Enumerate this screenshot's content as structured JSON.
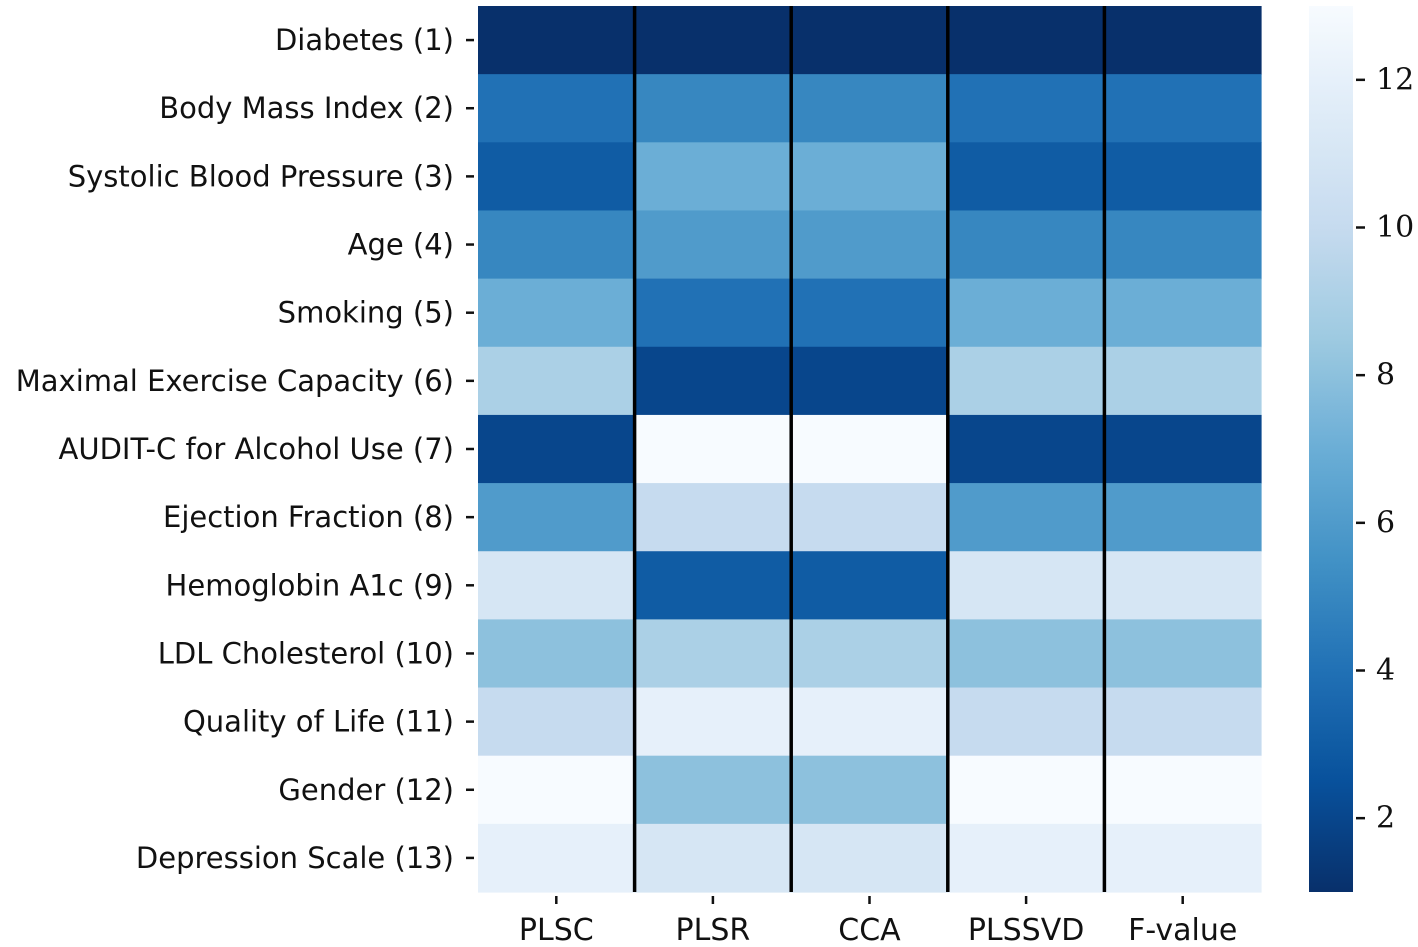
{
  "chart_data": {
    "type": "heatmap",
    "title": "",
    "xlabel": "",
    "ylabel": "",
    "rows": [
      "Diabetes (1)",
      "Body Mass Index (2)",
      "Systolic Blood Pressure (3)",
      "Age (4)",
      "Smoking (5)",
      "Maximal Exercise Capacity (6)",
      "AUDIT-C for Alcohol Use (7)",
      "Ejection Fraction (8)",
      "Hemoglobin A1c (9)",
      "LDL Cholesterol (10)",
      "Quality of Life (11)",
      "Gender (12)",
      "Depression Scale (13)"
    ],
    "columns": [
      "PLSC",
      "PLSR",
      "CCA",
      "PLSSVD",
      "F-value"
    ],
    "values": [
      [
        1,
        1,
        1,
        1,
        1
      ],
      [
        4,
        5,
        5,
        4,
        4
      ],
      [
        3,
        7,
        7,
        3,
        3
      ],
      [
        5,
        6,
        6,
        5,
        5
      ],
      [
        7,
        4,
        4,
        7,
        7
      ],
      [
        9,
        2,
        2,
        9,
        9
      ],
      [
        2,
        13,
        13,
        2,
        2
      ],
      [
        6,
        10,
        10,
        6,
        6
      ],
      [
        11,
        3,
        3,
        11,
        11
      ],
      [
        8,
        9,
        9,
        8,
        8
      ],
      [
        10,
        12,
        12,
        10,
        10
      ],
      [
        13,
        8,
        8,
        13,
        13
      ],
      [
        12,
        11,
        11,
        12,
        12
      ]
    ],
    "colorbar": {
      "colormap": "Blues_r",
      "vmin": 1,
      "vmax": 13,
      "ticks": [
        2,
        4,
        6,
        8,
        10,
        12
      ],
      "tick_labels": [
        "2",
        "4",
        "6",
        "8",
        "10",
        "12"
      ]
    },
    "column_separators_after": [
      0,
      1,
      2,
      3
    ]
  }
}
